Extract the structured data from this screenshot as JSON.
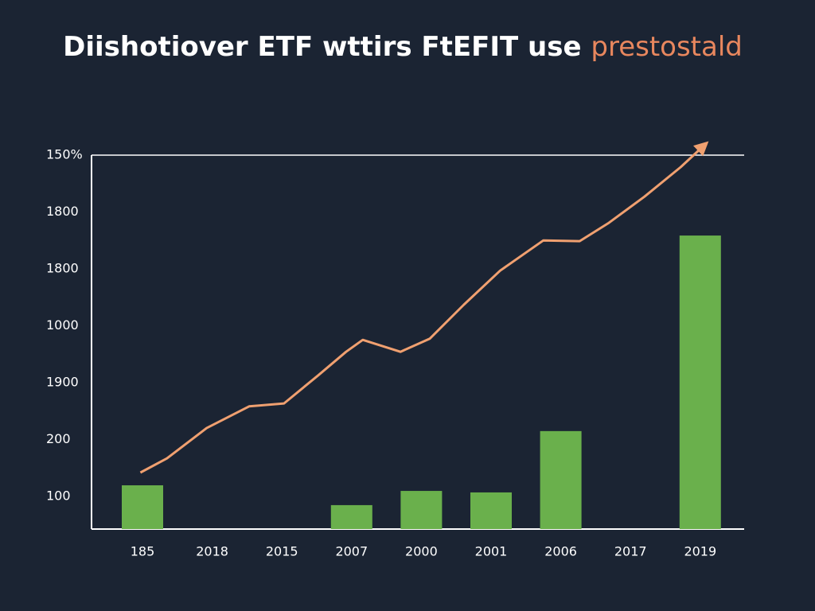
{
  "chart_data": {
    "type": "bar",
    "title": "Diishotiover ETF wttirs FtEFIT use",
    "title_highlight": "prestostald",
    "title_highlight_color": "#e8875e",
    "categories": [
      "185",
      "2018",
      "2015",
      "2007",
      "2000",
      "2001",
      "2006",
      "2017",
      "2019"
    ],
    "values": [
      11.7,
      null,
      null,
      6.4,
      10.2,
      9.8,
      26.2,
      null,
      78.5
    ],
    "color": "#6ab04c",
    "ylim": [
      0,
      100
    ],
    "y_tick_labels": [
      "150%",
      "1800",
      "1800",
      "1000",
      "1900",
      "200",
      "100"
    ],
    "line": {
      "type": "line",
      "color": "#f0a070",
      "xlim": [
        0,
        8
      ],
      "x": [
        -0.03,
        0.35,
        0.92,
        1.53,
        2.03,
        2.52,
        2.92,
        3.16,
        3.7,
        4.12,
        4.61,
        5.13,
        5.75,
        6.27,
        6.69,
        7.2,
        7.72,
        8.09
      ],
      "values": [
        15.1,
        18.9,
        27.0,
        32.8,
        33.6,
        41.1,
        47.4,
        50.6,
        47.4,
        50.9,
        60.0,
        69.1,
        77.2,
        77.0,
        81.9,
        88.9,
        96.8,
        103.2
      ]
    }
  }
}
